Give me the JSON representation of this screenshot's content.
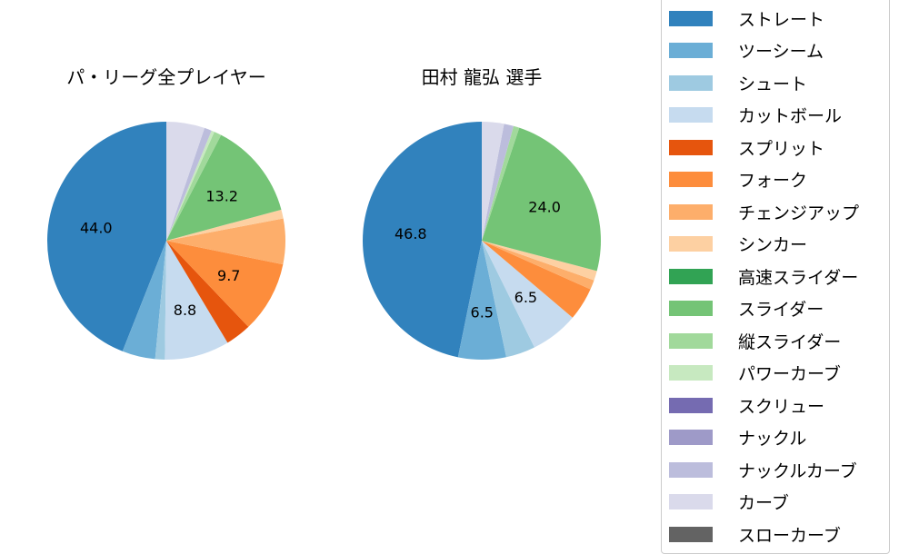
{
  "chart_data": [
    {
      "type": "pie",
      "title": "パ・リーグ全プレイヤー",
      "categories": [
        "ストレート",
        "ツーシーム",
        "シュート",
        "カットボール",
        "スプリット",
        "フォーク",
        "チェンジアップ",
        "シンカー",
        "スライダー",
        "縦スライダー",
        "パワーカーブ",
        "ナックルカーブ",
        "カーブ"
      ],
      "values": [
        44.0,
        4.5,
        1.3,
        8.8,
        3.5,
        9.7,
        6.2,
        1.2,
        13.2,
        1.0,
        0.4,
        1.0,
        5.2
      ],
      "labeled_values": [
        "44.0",
        "8.8",
        "9.7",
        "13.2"
      ],
      "startangle": 90,
      "direction": "counterclockwise"
    },
    {
      "type": "pie",
      "title": "田村 龍弘  選手",
      "categories": [
        "ストレート",
        "ツーシーム",
        "シュート",
        "カットボール",
        "フォーク",
        "チェンジアップ",
        "シンカー",
        "スライダー",
        "縦スライダー",
        "ナックルカーブ",
        "カーブ"
      ],
      "values": [
        46.8,
        6.5,
        4.0,
        6.5,
        4.5,
        1.3,
        1.3,
        24.0,
        0.8,
        1.3,
        3.0
      ],
      "labeled_values": [
        "46.8",
        "6.5",
        "6.5",
        "24.0"
      ],
      "startangle": 90,
      "direction": "counterclockwise"
    }
  ],
  "titles": {
    "left": "パ・リーグ全プレイヤー",
    "right": "田村 龍弘  選手"
  },
  "colors": {
    "ストレート": "#3182bd",
    "ツーシーム": "#6baed6",
    "シュート": "#9ecae1",
    "カットボール": "#c6dbef",
    "スプリット": "#e6550d",
    "フォーク": "#fd8d3c",
    "チェンジアップ": "#fdae6b",
    "シンカー": "#fdd0a2",
    "高速スライダー": "#31a354",
    "スライダー": "#74c476",
    "縦スライダー": "#a1d99b",
    "パワーカーブ": "#c7e9c0",
    "スクリュー": "#756bb1",
    "ナックル": "#9e9ac8",
    "ナックルカーブ": "#bcbddc",
    "カーブ": "#dadaeb",
    "スローカーブ": "#636363"
  },
  "legend": {
    "items": [
      {
        "label": "ストレート",
        "color": "#3182bd"
      },
      {
        "label": "ツーシーム",
        "color": "#6baed6"
      },
      {
        "label": "シュート",
        "color": "#9ecae1"
      },
      {
        "label": "カットボール",
        "color": "#c6dbef"
      },
      {
        "label": "スプリット",
        "color": "#e6550d"
      },
      {
        "label": "フォーク",
        "color": "#fd8d3c"
      },
      {
        "label": "チェンジアップ",
        "color": "#fdae6b"
      },
      {
        "label": "シンカー",
        "color": "#fdd0a2"
      },
      {
        "label": "高速スライダー",
        "color": "#31a354"
      },
      {
        "label": "スライダー",
        "color": "#74c476"
      },
      {
        "label": "縦スライダー",
        "color": "#a1d99b"
      },
      {
        "label": "パワーカーブ",
        "color": "#c7e9c0"
      },
      {
        "label": "スクリュー",
        "color": "#756bb1"
      },
      {
        "label": "ナックル",
        "color": "#9e9ac8"
      },
      {
        "label": "ナックルカーブ",
        "color": "#bcbddc"
      },
      {
        "label": "カーブ",
        "color": "#dadaeb"
      },
      {
        "label": "スローカーブ",
        "color": "#636363"
      }
    ]
  }
}
